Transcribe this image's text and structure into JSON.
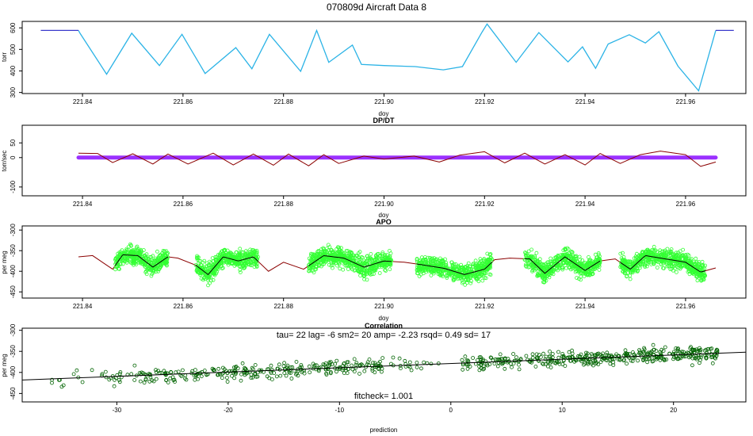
{
  "figure": {
    "title": "070809d   Aircraft Data 8"
  },
  "colors": {
    "pressure": "#2bb3e6",
    "pressure_ends": "#3a3acc",
    "dpdt_line": "#8b0000",
    "dpdt_band": "#9b30ff",
    "apo_points": "#33ff33",
    "apo_fill": "#8b0000",
    "apo_smooth": "#000000",
    "corr_points": "#006400",
    "fit_line": "#000000"
  },
  "chart_data": [
    {
      "id": "pressure",
      "type": "line",
      "title": "",
      "xlabel": "doy",
      "ylabel": "torr",
      "xlim": [
        221.828,
        221.972
      ],
      "ylim": [
        295,
        630
      ],
      "xticks": [
        221.84,
        221.86,
        221.88,
        221.9,
        221.92,
        221.94,
        221.96
      ],
      "xtick_labels": [
        "221.84",
        "221.86",
        "221.88",
        "221.90",
        "221.92",
        "221.94",
        "221.96"
      ],
      "yticks": [
        300,
        400,
        500,
        600
      ],
      "ytick_labels": [
        "300",
        "400",
        "500",
        "600"
      ],
      "series": [
        {
          "x": [
            221.8317,
            221.8392,
            221.8395,
            221.8448,
            221.8498,
            221.8553,
            221.8598,
            221.8644,
            221.8705,
            221.8737,
            221.8772,
            221.8834,
            221.8866,
            221.889,
            221.8937,
            221.8955,
            221.9,
            221.9062,
            221.9118,
            221.9156,
            221.9195,
            221.9205,
            221.9263,
            221.9308,
            221.9366,
            221.9395,
            221.9421,
            221.9446,
            221.9488,
            221.952,
            221.9547,
            221.9585,
            221.9626,
            221.966,
            221.9696
          ],
          "y": [
            588,
            588,
            575,
            385,
            575,
            425,
            570,
            388,
            508,
            410,
            570,
            398,
            588,
            440,
            520,
            430,
            425,
            420,
            405,
            420,
            580,
            618,
            440,
            578,
            442,
            512,
            412,
            525,
            568,
            530,
            582,
            422,
            308,
            588,
            588
          ]
        }
      ]
    },
    {
      "id": "dpdt",
      "type": "line",
      "title": "DP/DT",
      "xlabel": "doy",
      "ylabel": "torr/sec",
      "xlim": [
        221.828,
        221.972
      ],
      "ylim": [
        -130,
        110
      ],
      "xticks": [
        221.84,
        221.86,
        221.88,
        221.9,
        221.92,
        221.94,
        221.96
      ],
      "xtick_labels": [
        "221.84",
        "221.86",
        "221.88",
        "221.90",
        "221.92",
        "221.94",
        "221.96"
      ],
      "yticks": [
        -100,
        0,
        50
      ],
      "ytick_labels": [
        "-100",
        "0",
        "50"
      ],
      "band_y": 0,
      "series": [
        {
          "x": [
            221.8392,
            221.843,
            221.846,
            221.85,
            221.854,
            221.857,
            221.861,
            221.866,
            221.87,
            221.874,
            221.878,
            221.881,
            221.885,
            221.888,
            221.891,
            221.896,
            221.9,
            221.906,
            221.911,
            221.915,
            221.92,
            221.924,
            221.928,
            221.932,
            221.936,
            221.94,
            221.943,
            221.947,
            221.951,
            221.955,
            221.96,
            221.963,
            221.966
          ],
          "y": [
            15,
            14,
            -17,
            13,
            -22,
            12,
            -22,
            15,
            -25,
            12,
            -26,
            12,
            -28,
            10,
            -20,
            5,
            -5,
            5,
            -15,
            8,
            20,
            -18,
            15,
            -22,
            10,
            -25,
            14,
            -20,
            10,
            22,
            10,
            -30,
            -15
          ]
        }
      ]
    },
    {
      "id": "apo",
      "type": "scatter",
      "title": "APO",
      "xlabel": "doy",
      "ylabel": "per meg",
      "xlim": [
        221.828,
        221.972
      ],
      "ylim": [
        -465,
        -290
      ],
      "xticks": [
        221.84,
        221.86,
        221.88,
        221.9,
        221.92,
        221.94,
        221.96
      ],
      "xtick_labels": [
        "221.84",
        "221.86",
        "221.88",
        "221.90",
        "221.92",
        "221.94",
        "221.96"
      ],
      "yticks": [
        -450,
        -400,
        -350,
        -300
      ],
      "ytick_labels": [
        "-450",
        "-400",
        "-350",
        "-300"
      ],
      "segments": [
        [
          221.8465,
          221.857
        ],
        [
          221.8625,
          221.875
        ],
        [
          221.885,
          221.9015
        ],
        [
          221.9065,
          221.9215
        ],
        [
          221.928,
          221.943
        ],
        [
          221.947,
          221.964
        ]
      ],
      "series": [
        {
          "name": "",
          "x": [
            221.8392,
            221.842,
            221.846,
            221.848,
            221.851,
            221.854,
            221.857,
            221.859,
            221.8625,
            221.865,
            221.868,
            221.871,
            221.874,
            221.877,
            221.88,
            221.884,
            221.888,
            221.892,
            221.896,
            221.9,
            221.904,
            221.908,
            221.912,
            221.916,
            221.92,
            221.922,
            221.925,
            221.929,
            221.932,
            221.936,
            221.94,
            221.943,
            221.946,
            221.949,
            221.952,
            221.956,
            221.96,
            221.963,
            221.966
          ],
          "y": [
            -365,
            -362,
            -395,
            -360,
            -362,
            -390,
            -365,
            -368,
            -385,
            -408,
            -365,
            -375,
            -365,
            -400,
            -378,
            -395,
            -362,
            -368,
            -390,
            -375,
            -378,
            -385,
            -393,
            -408,
            -395,
            -372,
            -368,
            -370,
            -405,
            -365,
            -398,
            -375,
            -370,
            -395,
            -362,
            -370,
            -378,
            -402,
            -392
          ]
        }
      ]
    },
    {
      "id": "correlation",
      "type": "scatter",
      "title": "Correlation",
      "subtitle": "tau= 22 lag= -6 sm2= 20 amp= -2.23 rsqd= 0.49 sd= 17",
      "annotation": "fitcheck= 1.001",
      "xlabel": "prediction",
      "ylabel": "per meg",
      "xlim": [
        -38.5,
        26.5
      ],
      "ylim": [
        -470,
        -295
      ],
      "xticks": [
        -30,
        -20,
        -10,
        0,
        10,
        20
      ],
      "xtick_labels": [
        "-30",
        "-20",
        "-10",
        "0",
        "10",
        "20"
      ],
      "yticks": [
        -450,
        -400,
        -350,
        -300
      ],
      "ytick_labels": [
        "-450",
        "-400",
        "-350",
        "-300"
      ],
      "fit": {
        "x": [
          -38.5,
          26.5
        ],
        "y": [
          -418,
          -352
        ]
      },
      "clusters": [
        [
          -36,
          -28,
          0.1
        ],
        [
          -28,
          -18,
          0.28
        ],
        [
          -18,
          -6,
          0.32
        ],
        [
          -6,
          -1,
          0.1
        ],
        [
          1,
          12,
          0.36
        ],
        [
          12,
          24,
          0.5
        ]
      ]
    }
  ]
}
